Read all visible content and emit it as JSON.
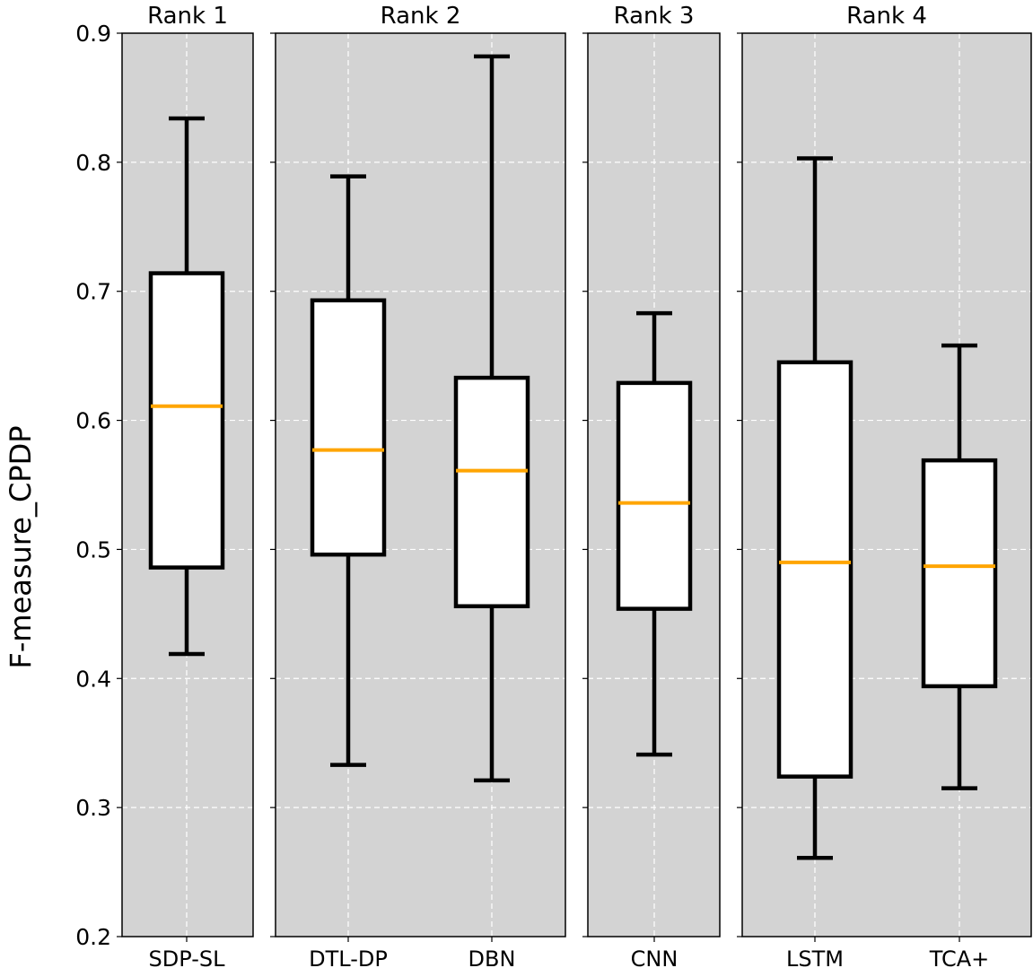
{
  "chart_data": {
    "type": "box",
    "ylabel": "F-measure_CPDP",
    "ylim": [
      0.2,
      0.9
    ],
    "yticks": [
      0.2,
      0.3,
      0.4,
      0.5,
      0.6,
      0.7,
      0.8,
      0.9
    ],
    "ytick_labels": [
      "0.2",
      "0.3",
      "0.4",
      "0.5",
      "0.6",
      "0.7",
      "0.8",
      "0.9"
    ],
    "grid": true,
    "colors": {
      "panel_bg": "#d3d3d3",
      "box_fill": "#ffffff",
      "box_edge": "#000000",
      "median": "#ffa500",
      "grid": "#ffffff"
    },
    "panels": [
      {
        "title": "Rank 1",
        "boxes": [
          {
            "label": "SDP-SL",
            "whisker_low": 0.419,
            "q1": 0.486,
            "median": 0.611,
            "q3": 0.714,
            "whisker_high": 0.834
          }
        ]
      },
      {
        "title": "Rank 2",
        "boxes": [
          {
            "label": "DTL-DP",
            "whisker_low": 0.333,
            "q1": 0.496,
            "median": 0.577,
            "q3": 0.693,
            "whisker_high": 0.789
          },
          {
            "label": "DBN",
            "whisker_low": 0.321,
            "q1": 0.456,
            "median": 0.561,
            "q3": 0.633,
            "whisker_high": 0.882
          }
        ]
      },
      {
        "title": "Rank 3",
        "boxes": [
          {
            "label": "CNN",
            "whisker_low": 0.341,
            "q1": 0.454,
            "median": 0.536,
            "q3": 0.629,
            "whisker_high": 0.683
          }
        ]
      },
      {
        "title": "Rank 4",
        "boxes": [
          {
            "label": "LSTM",
            "whisker_low": 0.261,
            "q1": 0.324,
            "median": 0.49,
            "q3": 0.645,
            "whisker_high": 0.803
          },
          {
            "label": "TCA+",
            "whisker_low": 0.315,
            "q1": 0.394,
            "median": 0.487,
            "q3": 0.569,
            "whisker_high": 0.658
          }
        ]
      }
    ]
  }
}
